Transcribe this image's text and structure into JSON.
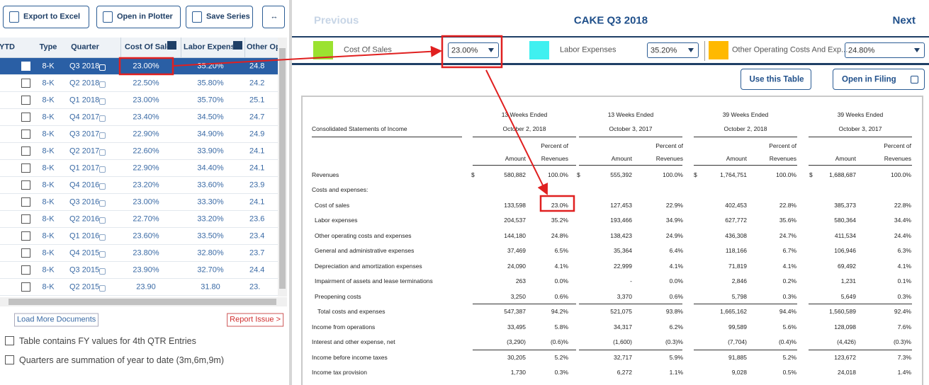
{
  "toolbar": {
    "export": "Export to Excel",
    "plotter": "Open in Plotter",
    "save": "Save Series",
    "expand": "↔"
  },
  "left_table": {
    "headers": [
      "YTD",
      "Type",
      "Quarter",
      "Cost Of Sale",
      "Labor Expens",
      "Other Op"
    ],
    "rows": [
      [
        "8-K",
        "Q3 2018",
        "23.00%",
        "35.20%",
        "24.8"
      ],
      [
        "8-K",
        "Q2 2018",
        "22.50%",
        "35.80%",
        "24.2"
      ],
      [
        "8-K",
        "Q1 2018",
        "23.00%",
        "35.70%",
        "25.1"
      ],
      [
        "8-K",
        "Q4 2017",
        "23.40%",
        "34.50%",
        "24.7"
      ],
      [
        "8-K",
        "Q3 2017",
        "22.90%",
        "34.90%",
        "24.9"
      ],
      [
        "8-K",
        "Q2 2017",
        "22.60%",
        "33.90%",
        "24.1"
      ],
      [
        "8-K",
        "Q1 2017",
        "22.90%",
        "34.40%",
        "24.1"
      ],
      [
        "8-K",
        "Q4 2016",
        "23.20%",
        "33.60%",
        "23.9"
      ],
      [
        "8-K",
        "Q3 2016",
        "23.00%",
        "33.30%",
        "24.1"
      ],
      [
        "8-K",
        "Q2 2016",
        "22.70%",
        "33.20%",
        "23.6"
      ],
      [
        "8-K",
        "Q1 2016",
        "23.60%",
        "33.50%",
        "23.4"
      ],
      [
        "8-K",
        "Q4 2015",
        "23.80%",
        "32.80%",
        "23.7"
      ],
      [
        "8-K",
        "Q3 2015",
        "23.90%",
        "32.70%",
        "24.4"
      ],
      [
        "8-K",
        "Q2 2015",
        "23.90",
        "31.80",
        "23."
      ]
    ]
  },
  "load_more": "Load More Documents",
  "report_issue": "Report Issue >",
  "options": [
    "Table contains FY values for 4th QTR Entries",
    "Quarters are summation of year to date (3m,6m,9m)"
  ],
  "nav": {
    "previous": "Previous",
    "title": "CAKE Q3 2018",
    "next": "Next"
  },
  "mappings": [
    {
      "label": "Cost Of Sales",
      "color": "#9be230",
      "value": "23.00%"
    },
    {
      "label": "Labor Expenses",
      "color": "#40f0f0",
      "value": "35.20%"
    },
    {
      "label": "Other Operating Costs And Exp...",
      "color": "#ffb900",
      "value": "24.80%"
    }
  ],
  "buttons": {
    "use": "Use this Table",
    "open": "Open in Filing"
  },
  "filing": {
    "title": "Consolidated Statements of Income",
    "periods": [
      {
        "length": "13 Weeks Ended",
        "date": "October 2, 2018"
      },
      {
        "length": "13 Weeks Ended",
        "date": "October 3, 2017"
      },
      {
        "length": "39 Weeks Ended",
        "date": "October 2, 2018"
      },
      {
        "length": "39 Weeks Ended",
        "date": "October 3, 2017"
      }
    ],
    "percent_of": "Percent of",
    "amount": "Amount",
    "revenues": "Revenues",
    "rows": [
      {
        "label": "Revenues",
        "cells": [
          "$",
          "580,882",
          "100.0%",
          "$",
          "555,392",
          "100.0%",
          "$",
          "1,764,751",
          "100.0%",
          "$",
          "1,688,687",
          "100.0%"
        ]
      },
      {
        "label": "Costs and expenses:",
        "cells": []
      },
      {
        "label": "Cost of sales",
        "cells": [
          null,
          "133,598",
          "23.0%",
          null,
          "127,453",
          "22.9%",
          null,
          "402,453",
          "22.8%",
          null,
          "385,373",
          "22.8%"
        ]
      },
      {
        "label": "Labor expenses",
        "cells": [
          null,
          "204,537",
          "35.2%",
          null,
          "193,466",
          "34.9%",
          null,
          "627,772",
          "35.6%",
          null,
          "580,364",
          "34.4%"
        ]
      },
      {
        "label": "Other operating costs and expenses",
        "cells": [
          null,
          "144,180",
          "24.8%",
          null,
          "138,423",
          "24.9%",
          null,
          "436,308",
          "24.7%",
          null,
          "411,534",
          "24.4%"
        ]
      },
      {
        "label": "General and administrative expenses",
        "cells": [
          null,
          "37,469",
          "6.5%",
          null,
          "35,364",
          "6.4%",
          null,
          "118,166",
          "6.7%",
          null,
          "106,946",
          "6.3%"
        ]
      },
      {
        "label": "Depreciation and amortization expenses",
        "cells": [
          null,
          "24,090",
          "4.1%",
          null,
          "22,999",
          "4.1%",
          null,
          "71,819",
          "4.1%",
          null,
          "69,492",
          "4.1%"
        ]
      },
      {
        "label": "Impairment of assets and lease terminations",
        "cells": [
          null,
          "263",
          "0.0%",
          null,
          "-",
          "0.0%",
          null,
          "2,846",
          "0.2%",
          null,
          "1,231",
          "0.1%"
        ]
      },
      {
        "label": "Preopening costs",
        "cells": [
          null,
          "3,250",
          "0.6%",
          null,
          "3,370",
          "0.6%",
          null,
          "5,798",
          "0.3%",
          null,
          "5,649",
          "0.3%"
        ]
      },
      {
        "label": "Total costs and expenses",
        "cells": [
          null,
          "547,387",
          "94.2%",
          null,
          "521,075",
          "93.8%",
          null,
          "1,665,162",
          "94.4%",
          null,
          "1,560,589",
          "92.4%"
        ]
      },
      {
        "label": "Income from operations",
        "cells": [
          null,
          "33,495",
          "5.8%",
          null,
          "34,317",
          "6.2%",
          null,
          "99,589",
          "5.6%",
          null,
          "128,098",
          "7.6%"
        ]
      },
      {
        "label": "Interest and other expense, net",
        "cells": [
          null,
          "(3,290)",
          "(0.6)%",
          null,
          "(1,600)",
          "(0.3)%",
          null,
          "(7,704)",
          "(0.4)%",
          null,
          "(4,426)",
          "(0.3)%"
        ]
      },
      {
        "label": "Income before income taxes",
        "cells": [
          null,
          "30,205",
          "5.2%",
          null,
          "32,717",
          "5.9%",
          null,
          "91,885",
          "5.2%",
          null,
          "123,672",
          "7.3%"
        ]
      },
      {
        "label": "Income tax provision",
        "cells": [
          null,
          "1,730",
          "0.3%",
          null,
          "6,272",
          "1.1%",
          null,
          "9,028",
          "0.5%",
          null,
          "24,018",
          "1.4%"
        ]
      }
    ]
  }
}
